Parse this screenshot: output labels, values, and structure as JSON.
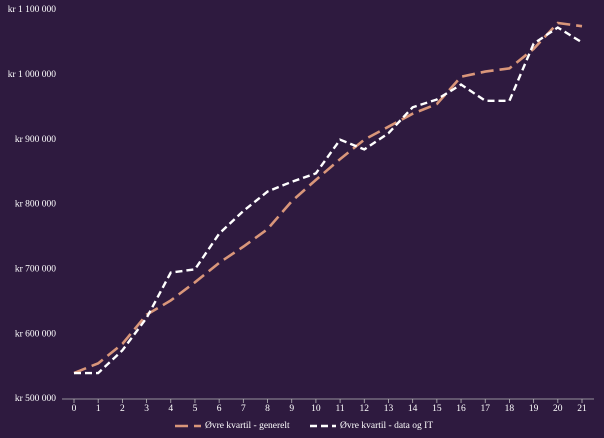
{
  "chart_data": {
    "type": "line",
    "x": [
      0,
      1,
      2,
      3,
      4,
      5,
      6,
      7,
      8,
      9,
      10,
      11,
      12,
      13,
      14,
      15,
      16,
      17,
      18,
      19,
      20,
      21
    ],
    "xlim": [
      0,
      21
    ],
    "xticks": [
      0,
      1,
      2,
      3,
      4,
      5,
      6,
      7,
      8,
      9,
      10,
      11,
      12,
      13,
      14,
      15,
      16,
      17,
      18,
      19,
      20,
      21
    ],
    "ylim": [
      500000,
      1100000
    ],
    "yticks": [
      {
        "value": 500000,
        "label": "kr 500 000"
      },
      {
        "value": 600000,
        "label": "kr 600 000"
      },
      {
        "value": 700000,
        "label": "kr 700 000"
      },
      {
        "value": 800000,
        "label": "kr 800 000"
      },
      {
        "value": 900000,
        "label": "kr 900 000"
      },
      {
        "value": 1000000,
        "label": "kr 1 000 000"
      },
      {
        "value": 1100000,
        "label": "kr 1 100 000"
      }
    ],
    "grid": false,
    "legend": "bottom",
    "series": [
      {
        "name": "Øvre kvartil - generelt",
        "color": "#d9967a",
        "values": [
          540000,
          555000,
          585000,
          630000,
          652000,
          680000,
          710000,
          735000,
          762000,
          805000,
          838000,
          870000,
          900000,
          920000,
          940000,
          955000,
          997000,
          1005000,
          1010000,
          1040000,
          1080000,
          1075000
        ]
      },
      {
        "name": "Øvre kvartil - data og IT",
        "color": "#ffffff",
        "values": [
          540000,
          540000,
          575000,
          625000,
          695000,
          700000,
          755000,
          790000,
          820000,
          835000,
          848000,
          900000,
          885000,
          910000,
          950000,
          962000,
          985000,
          960000,
          960000,
          1048000,
          1073000,
          1050000
        ]
      }
    ]
  }
}
